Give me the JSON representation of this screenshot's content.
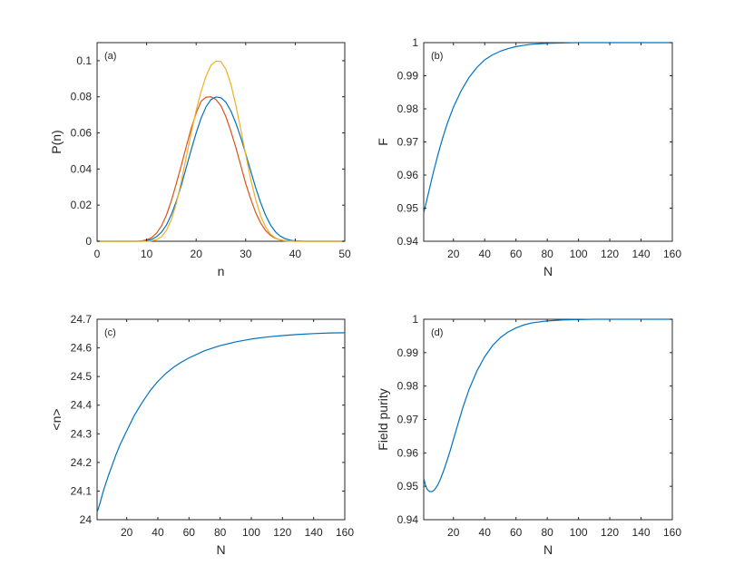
{
  "chart_data": [
    {
      "type": "line",
      "panel_label": "(a)",
      "xlabel": "n",
      "ylabel": "P(n)",
      "xlim": [
        0,
        50
      ],
      "ylim": [
        0,
        0.11
      ],
      "xticks": [
        0,
        10,
        20,
        30,
        40,
        50
      ],
      "yticks": [
        0,
        0.02,
        0.04,
        0.06,
        0.08,
        0.1
      ],
      "xtick_labels": [
        "0",
        "10",
        "20",
        "30",
        "40",
        "50"
      ],
      "ytick_labels": [
        "0",
        "0.02",
        "0.04",
        "0.06",
        "0.08",
        "0.1"
      ],
      "series": [
        {
          "color": "#D95319",
          "x": [
            0,
            2,
            4,
            6,
            8,
            9,
            10,
            11,
            12,
            13,
            14,
            15,
            16,
            17,
            18,
            19,
            20,
            21,
            22,
            23,
            24,
            25,
            26,
            27,
            28,
            29,
            30,
            31,
            32,
            33,
            34,
            35,
            36,
            37,
            38,
            40,
            42,
            44,
            46,
            48,
            50
          ],
          "y": [
            0,
            0,
            0,
            0,
            0,
            0.0002,
            0.0008,
            0.002,
            0.0045,
            0.0085,
            0.0145,
            0.0225,
            0.032,
            0.042,
            0.0525,
            0.0625,
            0.071,
            0.0775,
            0.0798,
            0.08,
            0.0785,
            0.075,
            0.069,
            0.061,
            0.052,
            0.042,
            0.032,
            0.0235,
            0.016,
            0.0102,
            0.006,
            0.0033,
            0.0016,
            0.0007,
            0.0003,
            0,
            0,
            0,
            0,
            0,
            0
          ]
        },
        {
          "color": "#0072BD",
          "x": [
            0,
            2,
            4,
            6,
            8,
            9,
            10,
            11,
            12,
            13,
            14,
            15,
            16,
            17,
            18,
            19,
            20,
            21,
            22,
            23,
            24,
            25,
            26,
            27,
            28,
            29,
            30,
            31,
            32,
            33,
            34,
            35,
            36,
            37,
            38,
            39,
            40,
            42,
            44,
            46,
            48,
            50
          ],
          "y": [
            0,
            0,
            0,
            0,
            0,
            0,
            0.0003,
            0.001,
            0.0025,
            0.005,
            0.009,
            0.0148,
            0.0222,
            0.031,
            0.0408,
            0.0507,
            0.06,
            0.0682,
            0.0745,
            0.0785,
            0.0799,
            0.0795,
            0.077,
            0.0722,
            0.0655,
            0.0575,
            0.0485,
            0.039,
            0.0298,
            0.0215,
            0.0145,
            0.009,
            0.0052,
            0.0028,
            0.0014,
            0.0006,
            0.0002,
            0,
            0,
            0,
            0,
            0
          ]
        },
        {
          "color": "#EDB120",
          "x": [
            0,
            2,
            4,
            6,
            8,
            10,
            11,
            12,
            13,
            14,
            15,
            16,
            17,
            18,
            19,
            20,
            21,
            22,
            23,
            24,
            25,
            26,
            27,
            28,
            29,
            30,
            31,
            32,
            33,
            34,
            35,
            36,
            37,
            38,
            40,
            42,
            44,
            46,
            48,
            50
          ],
          "y": [
            0,
            0,
            0,
            0,
            0,
            0,
            0.0002,
            0.0009,
            0.0025,
            0.006,
            0.012,
            0.021,
            0.033,
            0.0465,
            0.06,
            0.0725,
            0.083,
            0.0915,
            0.0975,
            0.0998,
            0.0995,
            0.0952,
            0.087,
            0.0755,
            0.062,
            0.048,
            0.0345,
            0.0232,
            0.0142,
            0.008,
            0.004,
            0.0018,
            0.0007,
            0.0002,
            0,
            0,
            0,
            0,
            0,
            0
          ]
        }
      ]
    },
    {
      "type": "line",
      "panel_label": "(b)",
      "xlabel": "N",
      "ylabel": "F",
      "xlim": [
        1,
        160
      ],
      "ylim": [
        0.94,
        1
      ],
      "xticks": [
        20,
        40,
        60,
        80,
        100,
        120,
        140,
        160
      ],
      "yticks": [
        0.94,
        0.95,
        0.96,
        0.97,
        0.98,
        0.99,
        1
      ],
      "xtick_labels": [
        "20",
        "40",
        "60",
        "80",
        "100",
        "120",
        "140",
        "160"
      ],
      "ytick_labels": [
        "0.94",
        "0.95",
        "0.96",
        "0.97",
        "0.98",
        "0.99",
        "1"
      ],
      "series": [
        {
          "color": "#0072BD",
          "x": [
            1,
            3,
            5,
            7,
            10,
            13,
            16,
            20,
            25,
            30,
            35,
            40,
            45,
            50,
            55,
            60,
            65,
            70,
            80,
            90,
            100,
            110,
            120,
            130,
            140,
            150,
            160
          ],
          "y": [
            0.9485,
            0.9525,
            0.9565,
            0.9605,
            0.966,
            0.971,
            0.9755,
            0.9805,
            0.9855,
            0.9895,
            0.9925,
            0.9948,
            0.9963,
            0.9974,
            0.9982,
            0.9988,
            0.9992,
            0.9995,
            0.9998,
            0.9999,
            1,
            1,
            1,
            1,
            1,
            1,
            1
          ]
        }
      ]
    },
    {
      "type": "line",
      "panel_label": "(c)",
      "xlabel": "N",
      "ylabel": "<n>",
      "xlim": [
        1,
        160
      ],
      "ylim": [
        24,
        24.7
      ],
      "xticks": [
        20,
        40,
        60,
        80,
        100,
        120,
        140,
        160
      ],
      "yticks": [
        24,
        24.1,
        24.2,
        24.3,
        24.4,
        24.5,
        24.6,
        24.7
      ],
      "xtick_labels": [
        "20",
        "40",
        "60",
        "80",
        "100",
        "120",
        "140",
        "160"
      ],
      "ytick_labels": [
        "24",
        "24.1",
        "24.2",
        "24.3",
        "24.4",
        "24.5",
        "24.6",
        "24.7"
      ],
      "series": [
        {
          "color": "#0072BD",
          "x": [
            1,
            3,
            5,
            8,
            10,
            13,
            16,
            20,
            25,
            30,
            35,
            40,
            45,
            50,
            55,
            60,
            70,
            80,
            90,
            100,
            110,
            120,
            130,
            140,
            150,
            160
          ],
          "y": [
            24.025,
            24.06,
            24.1,
            24.15,
            24.18,
            24.225,
            24.265,
            24.31,
            24.365,
            24.41,
            24.45,
            24.483,
            24.51,
            24.532,
            24.55,
            24.565,
            24.59,
            24.608,
            24.621,
            24.631,
            24.638,
            24.643,
            24.647,
            24.65,
            24.652,
            24.653
          ]
        }
      ]
    },
    {
      "type": "line",
      "panel_label": "(d)",
      "xlabel": "N",
      "ylabel": "Field purity",
      "xlim": [
        1,
        160
      ],
      "ylim": [
        0.94,
        1
      ],
      "xticks": [
        20,
        40,
        60,
        80,
        100,
        120,
        140,
        160
      ],
      "yticks": [
        0.94,
        0.95,
        0.96,
        0.97,
        0.98,
        0.99,
        1
      ],
      "xtick_labels": [
        "20",
        "40",
        "60",
        "80",
        "100",
        "120",
        "140",
        "160"
      ],
      "ytick_labels": [
        "0.94",
        "0.95",
        "0.96",
        "0.97",
        "0.98",
        "0.99",
        "1"
      ],
      "series": [
        {
          "color": "#0072BD",
          "x": [
            1,
            2,
            3,
            4,
            5,
            6,
            7,
            8,
            10,
            12,
            14,
            16,
            18,
            20,
            23,
            26,
            30,
            35,
            40,
            45,
            50,
            55,
            60,
            65,
            70,
            80,
            90,
            100,
            110,
            120,
            140,
            160
          ],
          "y": [
            0.9525,
            0.9505,
            0.9493,
            0.9487,
            0.9484,
            0.9484,
            0.9486,
            0.949,
            0.9504,
            0.9525,
            0.955,
            0.9578,
            0.9608,
            0.964,
            0.9688,
            0.9735,
            0.979,
            0.9845,
            0.9888,
            0.9921,
            0.9945,
            0.9962,
            0.9974,
            0.9983,
            0.9989,
            0.9995,
            0.9998,
            0.9999,
            1,
            1,
            1,
            1
          ]
        }
      ]
    }
  ]
}
